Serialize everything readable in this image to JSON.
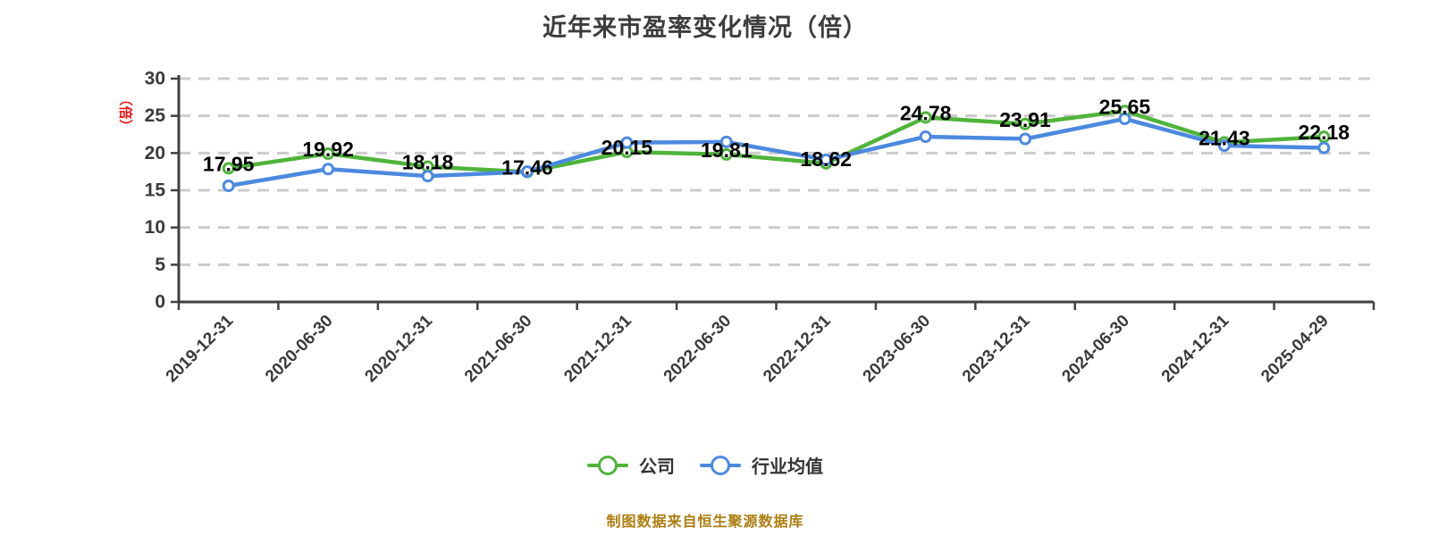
{
  "title": "近年来市盈率变化情况（倍）",
  "y_axis": {
    "name": "（倍）",
    "name_color": "#EE1111",
    "tick_labels": [
      "0",
      "5",
      "10",
      "15",
      "20",
      "25",
      "30"
    ]
  },
  "footer": {
    "text": "制图数据来自恒生聚源数据库"
  },
  "legend": {
    "items": [
      {
        "label": "公司",
        "color": "#4FB43A"
      },
      {
        "label": "行业均值",
        "color": "#4C89E0"
      }
    ]
  },
  "chart_data": {
    "type": "line",
    "title": "近年来市盈率变化情况（倍）",
    "categories": [
      "2019-12-31",
      "2020-06-30",
      "2020-12-31",
      "2021-06-30",
      "2021-12-31",
      "2022-06-30",
      "2022-12-31",
      "2023-06-30",
      "2023-12-31",
      "2024-06-30",
      "2024-12-31",
      "2025-04-29"
    ],
    "series": [
      {
        "name": "公司",
        "color": "#4FB43A",
        "values": [
          17.95,
          19.92,
          18.18,
          17.46,
          20.15,
          19.81,
          18.62,
          24.78,
          23.91,
          25.65,
          21.43,
          22.18
        ],
        "point_labels": [
          "17.95",
          "19.92",
          "18.18",
          "17.46",
          "20.15",
          "19.81",
          "18.62",
          "24.78",
          "23.91",
          "25.65",
          "21.43",
          "22.18"
        ],
        "show_point_labels": true
      },
      {
        "name": "行业均值",
        "color": "#4C89E0",
        "values": [
          15.6,
          17.85,
          16.9,
          17.5,
          21.4,
          21.5,
          19.1,
          22.2,
          21.9,
          24.6,
          21.0,
          20.7
        ],
        "show_point_labels": false
      }
    ],
    "xlabel": "",
    "ylabel": "（倍）",
    "ylim": [
      0,
      30
    ],
    "ytick_interval": 5,
    "grid": "horizontal-dashed",
    "legend_position": "bottom"
  },
  "colors": {
    "background": "#FFFFFF",
    "axis": "#404040",
    "gridline": "#CCCCCC",
    "tick_text": "#3A3A3A",
    "data_label": "#000000",
    "title_text": "#3C3C3C",
    "legend_text": "#333333",
    "source_note_text": "#AD7D0E"
  }
}
